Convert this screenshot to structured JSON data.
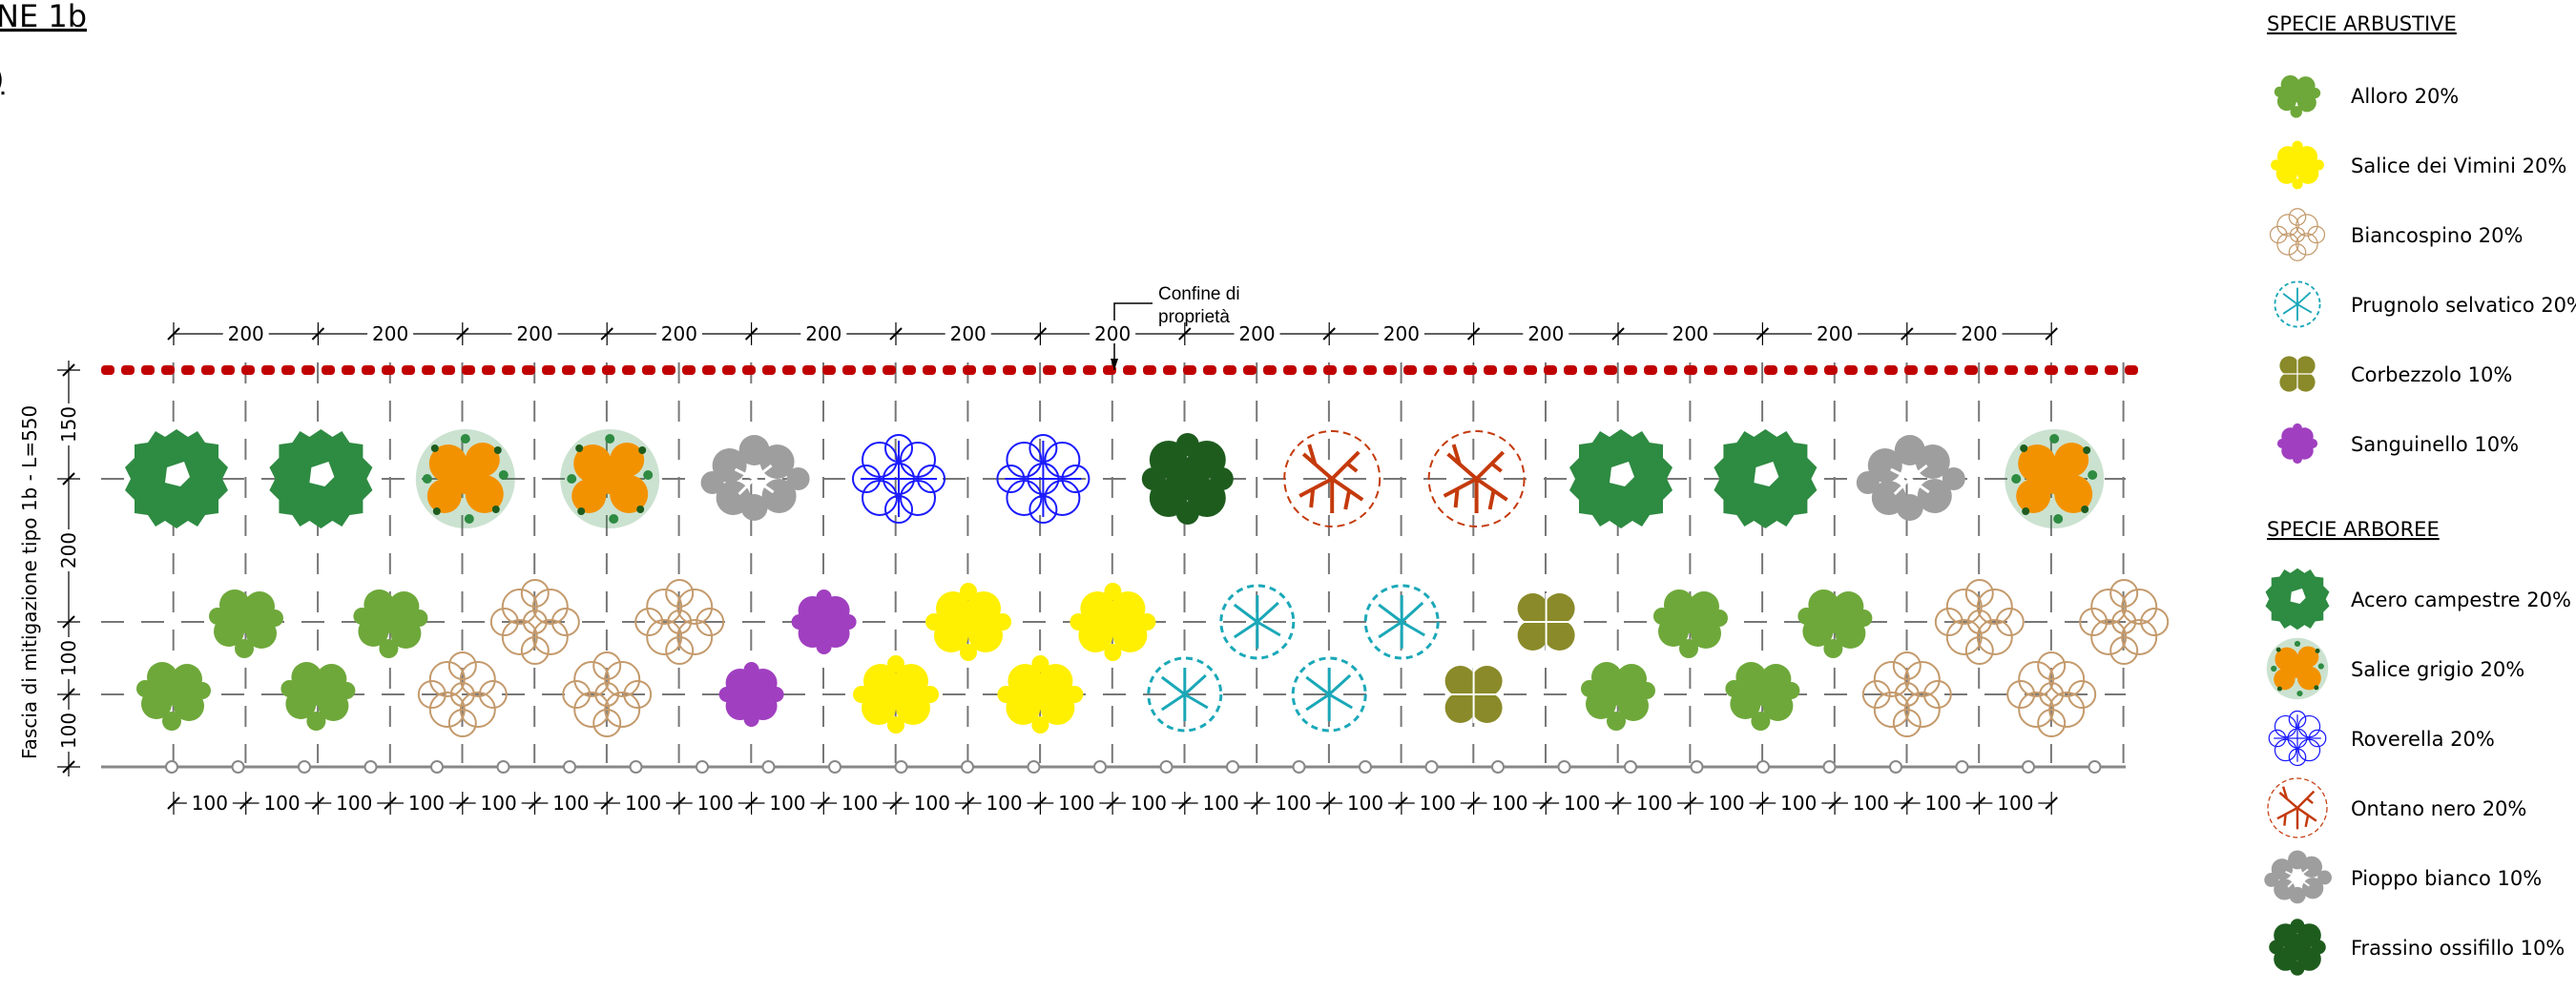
{
  "title": "NE 1b",
  "boundary_label_line1": "Confine di",
  "boundary_label_line2": "proprietà",
  "side_label": "Fascia di mitigazione tipo 1b - L=550",
  "vertical_dims": [
    "150",
    "200",
    "100",
    "100"
  ],
  "top_dims": [
    "200",
    "200",
    "200",
    "200",
    "200",
    "200",
    "200",
    "200",
    "200",
    "200",
    "200",
    "200",
    "200"
  ],
  "bottom_dims": [
    "100",
    "100",
    "100",
    "100",
    "100",
    "100",
    "100",
    "100",
    "100",
    "100",
    "100",
    "100",
    "100",
    "100",
    "100",
    "100",
    "100",
    "100",
    "100",
    "100",
    "100",
    "100",
    "100",
    "100",
    "100",
    "100"
  ],
  "colors": {
    "boundary": "#c00000",
    "acero": "#2e8b42",
    "salice_grigio_fill": "#f39200",
    "salice_grigio_dots": "#2e8b42",
    "roverella": "#1a1aff",
    "ontano": "#c43a0c",
    "pioppo": "#9e9e9e",
    "frassino": "#1e5c1e",
    "alloro": "#6ea83a",
    "salice_vimini": "#ffef00",
    "biancospino": "#c49a6c",
    "prugnolo": "#1aa8b8",
    "corbezzolo": "#8a8a2a",
    "sanguinello": "#a040c0"
  },
  "legend": {
    "shrubs_heading": "SPECIE ARBUSTIVE",
    "shrubs": [
      {
        "label": "Alloro 20%",
        "icon": "alloro-icon"
      },
      {
        "label": "Salice dei Vimini 20%",
        "icon": "salice-vimini-icon"
      },
      {
        "label": "Biancospino 20%",
        "icon": "biancospino-icon"
      },
      {
        "label": "Prugnolo selvatico 20%",
        "icon": "prugnolo-icon"
      },
      {
        "label": "Corbezzolo 10%",
        "icon": "corbezzolo-icon"
      },
      {
        "label": "Sanguinello 10%",
        "icon": "sanguinello-icon"
      }
    ],
    "trees_heading": "SPECIE ARBOREE",
    "trees": [
      {
        "label": "Acero campestre 20%",
        "icon": "acero-icon"
      },
      {
        "label": "Salice grigio 20%",
        "icon": "salice-grigio-icon"
      },
      {
        "label": "Roverella 20%",
        "icon": "roverella-icon"
      },
      {
        "label": "Ontano nero 20%",
        "icon": "ontano-icon"
      },
      {
        "label": "Pioppo bianco 10%",
        "icon": "pioppo-icon"
      },
      {
        "label": "Frassino ossifillo 10%",
        "icon": "frassino-icon"
      }
    ]
  },
  "tree_row": [
    "acero",
    "acero",
    "salice_grigio",
    "salice_grigio",
    "pioppo",
    "roverella",
    "roverella",
    "frassino",
    "ontano",
    "ontano",
    "acero",
    "acero",
    "pioppo",
    "salice_grigio"
  ],
  "shrub_row_upper": [
    "alloro",
    "alloro",
    "biancospino",
    "biancospino",
    "sanguinello",
    "salice_vimini",
    "salice_vimini",
    "prugnolo",
    "prugnolo",
    "corbezzolo",
    "alloro",
    "alloro",
    "biancospino",
    "biancospino"
  ],
  "shrub_row_lower": [
    "alloro",
    "alloro",
    "biancospino",
    "biancospino",
    "sanguinello",
    "salice_vimini",
    "salice_vimini",
    "prugnolo",
    "prugnolo",
    "corbezzolo",
    "alloro",
    "alloro",
    "biancospino",
    "biancospino"
  ]
}
